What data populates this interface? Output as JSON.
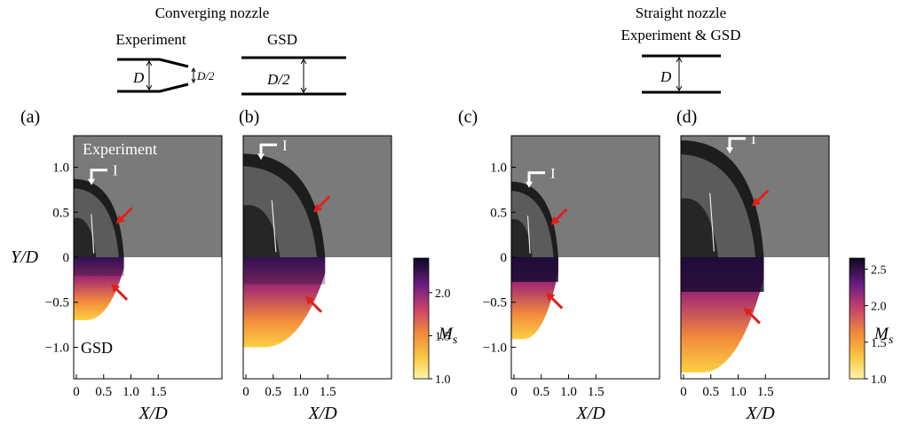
{
  "schematics": {
    "converging": {
      "title": "Converging nozzle",
      "experiment_label": "Experiment",
      "gsd_label": "GSD",
      "dim_large": "D",
      "dim_small": "D/2",
      "dim_gsd": "D/2"
    },
    "straight": {
      "title_line1": "Straight nozzle",
      "title_line2": "Experiment & GSD",
      "dim": "D"
    }
  },
  "panels": [
    {
      "label": "(a)",
      "exp_tag": "Experiment",
      "gsd_tag": "GSD",
      "marker": "I",
      "shock_radius": 0.92,
      "shock_height": 0.87,
      "gsd_depth": 0.7
    },
    {
      "label": "(b)",
      "exp_tag": "",
      "gsd_tag": "",
      "marker": "I",
      "shock_radius": 1.5,
      "shock_height": 1.15,
      "gsd_depth": 1.0
    },
    {
      "label": "(c)",
      "exp_tag": "",
      "gsd_tag": "",
      "marker": "I",
      "shock_radius": 0.86,
      "shock_height": 0.84,
      "gsd_depth": 0.91
    },
    {
      "label": "(d)",
      "exp_tag": "",
      "gsd_tag": "",
      "marker": "I",
      "shock_radius": 1.52,
      "shock_height": 1.3,
      "gsd_depth": 1.28
    }
  ],
  "axes": {
    "xlabel": "X/D",
    "ylabel": "Y/D",
    "xticks": [
      "0",
      "0.5",
      "1.0",
      "1.5"
    ],
    "yticks": [
      "1.0",
      "0.5",
      "0",
      "−0.5",
      "−1.0"
    ],
    "xlim": [
      0,
      1.75
    ],
    "ylim": [
      -1.35,
      1.35
    ]
  },
  "colorbars": [
    {
      "label": "M",
      "subscript": "s",
      "ticks": [
        "2.0",
        "1.5",
        "1.0"
      ],
      "range": [
        1.0,
        2.4
      ]
    },
    {
      "label": "M",
      "subscript": "s",
      "ticks": [
        "2.5",
        "2.0",
        "1.5",
        "1.0"
      ],
      "range": [
        1.0,
        2.65
      ]
    }
  ],
  "colors": {
    "schlieren_bg": "#7a7a7a",
    "arrow_red": "#e0201b",
    "marker_white": "#ffffff",
    "cmap_dark": "#0b0820",
    "cmap_mid": "#b5367a",
    "cmap_light": "#fde724"
  }
}
